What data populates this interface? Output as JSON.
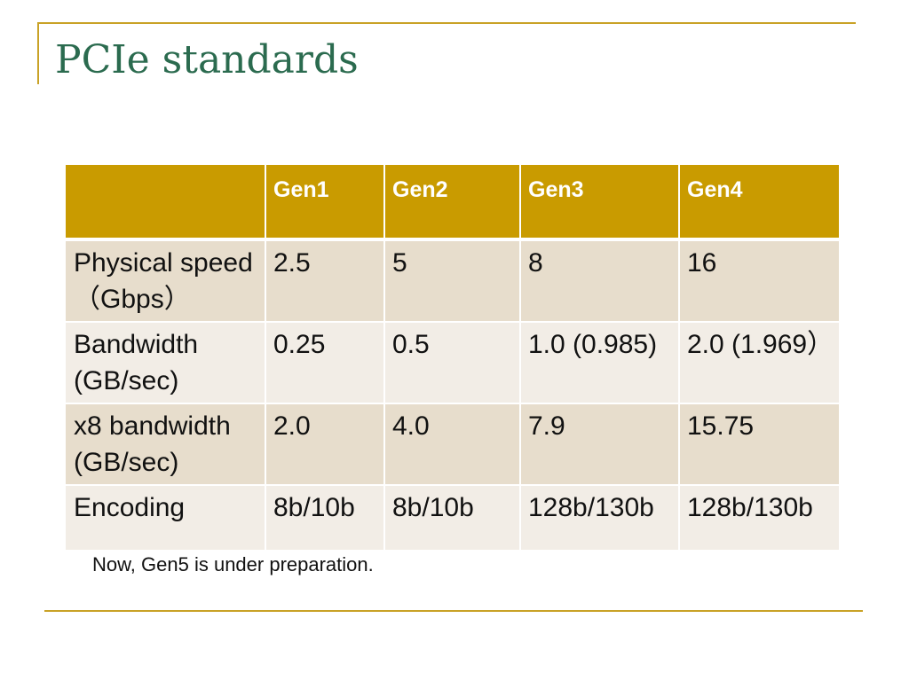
{
  "slide": {
    "title": "PCIe standards",
    "footnote": "Now, Gen5 is under preparation."
  },
  "table": {
    "corner": "",
    "headers": [
      "Gen1",
      "Gen2",
      "Gen3",
      "Gen4"
    ],
    "rows": [
      {
        "label": "Physical speed（Gbps）",
        "values": [
          "2.5",
          "5",
          "8",
          "16"
        ]
      },
      {
        "label": "Bandwidth (GB/sec)",
        "values": [
          "0.25",
          "0.5",
          "1.0 (0.985)",
          "2.0 (1.969）"
        ]
      },
      {
        "label": "x8 bandwidth (GB/sec)",
        "values": [
          "2.0",
          "4.0",
          "7.9",
          "15.75"
        ]
      },
      {
        "label": "Encoding",
        "values": [
          "8b/10b",
          "8b/10b",
          "128b/130b",
          "128b/130b"
        ]
      }
    ]
  },
  "colors": {
    "accent_rule": "#c9a227",
    "title": "#2b6b4f",
    "header_fill": "#c99b00",
    "row_odd_fill": "#e7ddcc",
    "row_even_fill": "#f2ede6"
  }
}
